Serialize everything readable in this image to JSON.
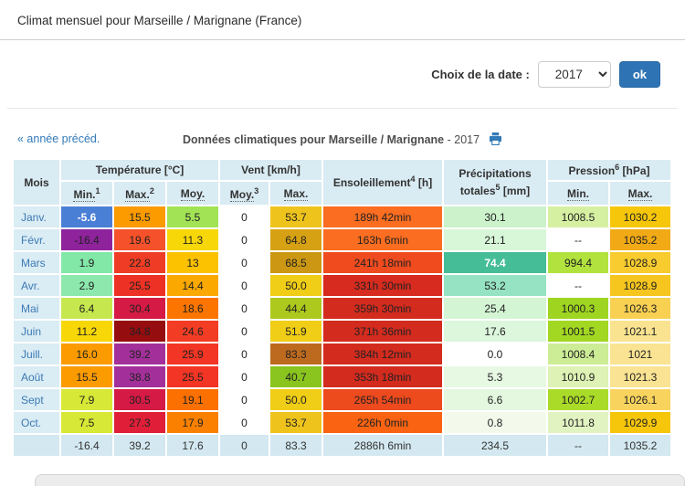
{
  "page": {
    "title": "Climat mensuel pour Marseille / Marignane (France)"
  },
  "date_chooser": {
    "label": "Choix de la date :",
    "selected_year": "2017",
    "ok_label": "ok"
  },
  "nav": {
    "prev_year_link": "« année précéd.",
    "caption_bold": "Données climatiques pour Marseille / Marignane",
    "caption_year": " - 2017"
  },
  "colors": {
    "accent_blue": "#2e74b5",
    "link_blue": "#337ab7",
    "header_bg": "#d9ebf3",
    "month_col_bg": "#daecf4",
    "summary_bg": "#d3e8f0"
  },
  "table": {
    "headers": {
      "mois": "Mois",
      "temperature": "Température [°C]",
      "vent": "Vent [km/h]",
      "sun": "Ensoleillement",
      "sun_sup": "4",
      "sun_unit": " [h]",
      "precip_l1": "Précipitations",
      "precip_l2": "totales",
      "precip_sup": "5",
      "precip_unit": " [mm]",
      "pression": "Pression",
      "pression_sup": "6",
      "pression_unit": " [hPa]",
      "sub": {
        "tmin": "Min.",
        "tmin_sup": "1",
        "tmax": "Max.",
        "tmax_sup": "2",
        "tmoy": "Moy.",
        "vmoy": "Moy.",
        "vmoy_sup": "3",
        "vmax": "Max.",
        "pmin": "Min.",
        "pmax": "Max."
      }
    },
    "rows": [
      {
        "month": "Janv.",
        "cells": [
          {
            "v": "-5.6",
            "bg": "#4a7fd6",
            "fg": "#ffffff",
            "b": true
          },
          {
            "v": "15.5",
            "bg": "#fb9b00"
          },
          {
            "v": "5.5",
            "bg": "#a2e356"
          },
          {
            "v": "0",
            "bg": "#ffffff"
          },
          {
            "v": "53.7",
            "bg": "#eec31c"
          },
          {
            "v": "189h 42min",
            "bg": "#fb6d20"
          },
          {
            "v": "30.1",
            "bg": "#ccf2cb"
          },
          {
            "v": "1008.5",
            "bg": "#d6f0a2"
          },
          {
            "v": "1030.2",
            "bg": "#f6c60a"
          }
        ]
      },
      {
        "month": "Févr.",
        "cells": [
          {
            "v": "-16.4",
            "bg": "#8e239c"
          },
          {
            "v": "19.6",
            "bg": "#f5512a"
          },
          {
            "v": "11.3",
            "bg": "#f7d708"
          },
          {
            "v": "0",
            "bg": "#ffffff"
          },
          {
            "v": "64.8",
            "bg": "#d7a114"
          },
          {
            "v": "163h 6min",
            "bg": "#fb6d20"
          },
          {
            "v": "21.1",
            "bg": "#d8f6d8"
          },
          {
            "v": "--",
            "bg": "#ffffff"
          },
          {
            "v": "1035.2",
            "bg": "#f1aa16"
          }
        ]
      },
      {
        "month": "Mars",
        "cells": [
          {
            "v": "1.9",
            "bg": "#82e8a8"
          },
          {
            "v": "22.8",
            "bg": "#ee3d24"
          },
          {
            "v": "13",
            "bg": "#fcc200"
          },
          {
            "v": "0",
            "bg": "#ffffff"
          },
          {
            "v": "68.5",
            "bg": "#cc9712"
          },
          {
            "v": "241h 18min",
            "bg": "#ef4b1e"
          },
          {
            "v": "74.4",
            "bg": "#45bd96",
            "fg": "#ffffff",
            "b": true
          },
          {
            "v": "994.4",
            "bg": "#b2e23e"
          },
          {
            "v": "1028.9",
            "bg": "#f8cb2e"
          }
        ]
      },
      {
        "month": "Avr.",
        "cells": [
          {
            "v": "2.9",
            "bg": "#8ce8ac"
          },
          {
            "v": "25.5",
            "bg": "#ed3124"
          },
          {
            "v": "14.4",
            "bg": "#fba800"
          },
          {
            "v": "0",
            "bg": "#ffffff"
          },
          {
            "v": "50.0",
            "bg": "#f0cd16"
          },
          {
            "v": "331h 30min",
            "bg": "#d62b1e"
          },
          {
            "v": "53.2",
            "bg": "#95e3c3"
          },
          {
            "v": "--",
            "bg": "#ffffff"
          },
          {
            "v": "1028.9",
            "bg": "#f6c61e"
          }
        ]
      },
      {
        "month": "Mai",
        "cells": [
          {
            "v": "6.4",
            "bg": "#c6e84e"
          },
          {
            "v": "30.4",
            "bg": "#d41a45"
          },
          {
            "v": "18.6",
            "bg": "#fb7500"
          },
          {
            "v": "0",
            "bg": "#ffffff"
          },
          {
            "v": "44.4",
            "bg": "#adc91d"
          },
          {
            "v": "359h 30min",
            "bg": "#d32b1e"
          },
          {
            "v": "25.4",
            "bg": "#d4f5d4"
          },
          {
            "v": "1000.3",
            "bg": "#9fd520"
          },
          {
            "v": "1026.3",
            "bg": "#f8d052"
          }
        ]
      },
      {
        "month": "Juin",
        "cells": [
          {
            "v": "11.2",
            "bg": "#f7d708"
          },
          {
            "v": "34.8",
            "bg": "#960d10"
          },
          {
            "v": "24.6",
            "bg": "#f23d24"
          },
          {
            "v": "0",
            "bg": "#ffffff"
          },
          {
            "v": "51.9",
            "bg": "#f0cd16"
          },
          {
            "v": "371h 36min",
            "bg": "#d32b1e"
          },
          {
            "v": "17.6",
            "bg": "#dcf7dc"
          },
          {
            "v": "1001.5",
            "bg": "#a2d822"
          },
          {
            "v": "1021.1",
            "bg": "#fae390"
          }
        ]
      },
      {
        "month": "Juill.",
        "cells": [
          {
            "v": "16.0",
            "bg": "#fb9b00"
          },
          {
            "v": "39.2",
            "bg": "#a3309a"
          },
          {
            "v": "25.9",
            "bg": "#f23524"
          },
          {
            "v": "0",
            "bg": "#ffffff"
          },
          {
            "v": "83.3",
            "bg": "#bd6a1e"
          },
          {
            "v": "384h 12min",
            "bg": "#d32b1e"
          },
          {
            "v": "0.0",
            "bg": "#ffffff"
          },
          {
            "v": "1008.4",
            "bg": "#cdec96"
          },
          {
            "v": "1021",
            "bg": "#fae392"
          }
        ]
      },
      {
        "month": "Août",
        "cells": [
          {
            "v": "15.5",
            "bg": "#fb9b00"
          },
          {
            "v": "38.8",
            "bg": "#a3309a"
          },
          {
            "v": "25.5",
            "bg": "#f23524"
          },
          {
            "v": "0",
            "bg": "#ffffff"
          },
          {
            "v": "40.7",
            "bg": "#8ac41e"
          },
          {
            "v": "353h 18min",
            "bg": "#d32b1e"
          },
          {
            "v": "5.3",
            "bg": "#e7f9e3"
          },
          {
            "v": "1010.9",
            "bg": "#ddf2b4"
          },
          {
            "v": "1021.3",
            "bg": "#fae392"
          }
        ]
      },
      {
        "month": "Sept",
        "cells": [
          {
            "v": "7.9",
            "bg": "#d8e836"
          },
          {
            "v": "30.5",
            "bg": "#d41a45"
          },
          {
            "v": "19.1",
            "bg": "#fb7000"
          },
          {
            "v": "0",
            "bg": "#ffffff"
          },
          {
            "v": "50.0",
            "bg": "#f0cd16"
          },
          {
            "v": "265h 54min",
            "bg": "#ed4a1e"
          },
          {
            "v": "6.6",
            "bg": "#e4f8e0"
          },
          {
            "v": "1002.7",
            "bg": "#aadb28"
          },
          {
            "v": "1026.1",
            "bg": "#f8d45e"
          }
        ]
      },
      {
        "month": "Oct.",
        "cells": [
          {
            "v": "7.5",
            "bg": "#d8e836"
          },
          {
            "v": "27.3",
            "bg": "#e01e38"
          },
          {
            "v": "17.9",
            "bg": "#fb8000"
          },
          {
            "v": "0",
            "bg": "#ffffff"
          },
          {
            "v": "53.7",
            "bg": "#eec31c"
          },
          {
            "v": "226h 0min",
            "bg": "#f96312"
          },
          {
            "v": "0.8",
            "bg": "#f3faeb"
          },
          {
            "v": "1011.8",
            "bg": "#e2f3c2"
          },
          {
            "v": "1029.9",
            "bg": "#f6c60a"
          }
        ]
      }
    ],
    "summary": {
      "month": "",
      "values": [
        "-16.4",
        "39.2",
        "17.6",
        "0",
        "83.3",
        "2886h 6min",
        "234.5",
        "--",
        "1035.2"
      ]
    }
  }
}
